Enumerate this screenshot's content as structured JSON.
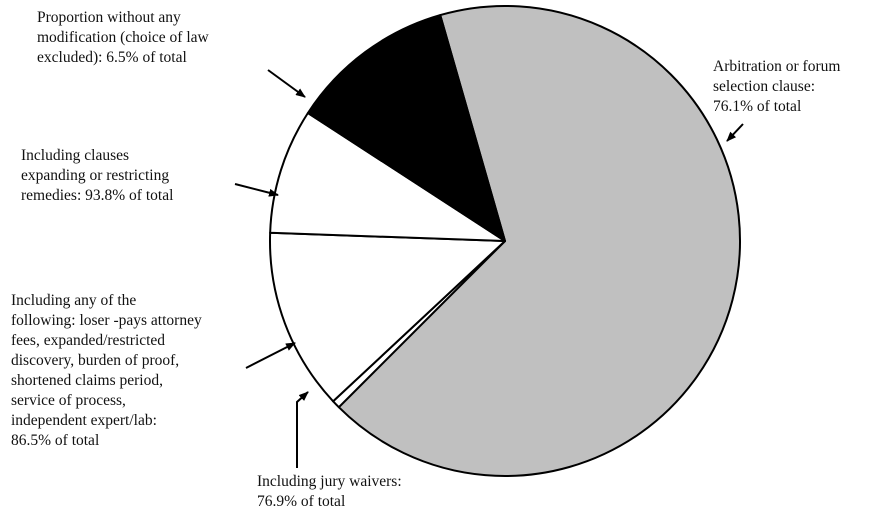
{
  "chart_data": {
    "type": "pie",
    "colors": {
      "arbitration": "#c0c0c0",
      "modification": "#000000",
      "other": "#ffffff",
      "outline": "#000000"
    },
    "slices": [
      {
        "id": "arbitration",
        "text": "Arbitration or forum\nselection clause:\n76.1% of total",
        "value": 76.1,
        "fill": "#c0c0c0"
      },
      {
        "id": "jury",
        "text": "Including jury waivers:\n76.9% of total",
        "value": 76.9,
        "fill": "#ffffff"
      },
      {
        "id": "fees",
        "text": "Including any of the\nfollowing: loser -pays attorney\nfees, expanded/restricted\ndiscovery, burden of proof,\nshortened claims period,\nservice of process,\nindependent expert/lab:\n86.5% of total",
        "value": 86.5,
        "fill": "#ffffff"
      },
      {
        "id": "remedies",
        "text": "Including clauses\nexpanding or restricting\nremedies: 93.8% of total",
        "value": 93.8,
        "fill": "#ffffff"
      },
      {
        "id": "modification",
        "text": "Proportion without any\nmodification (choice of law\nexcluded): 6.5% of total",
        "value": 6.5,
        "fill": "#000000"
      }
    ]
  }
}
